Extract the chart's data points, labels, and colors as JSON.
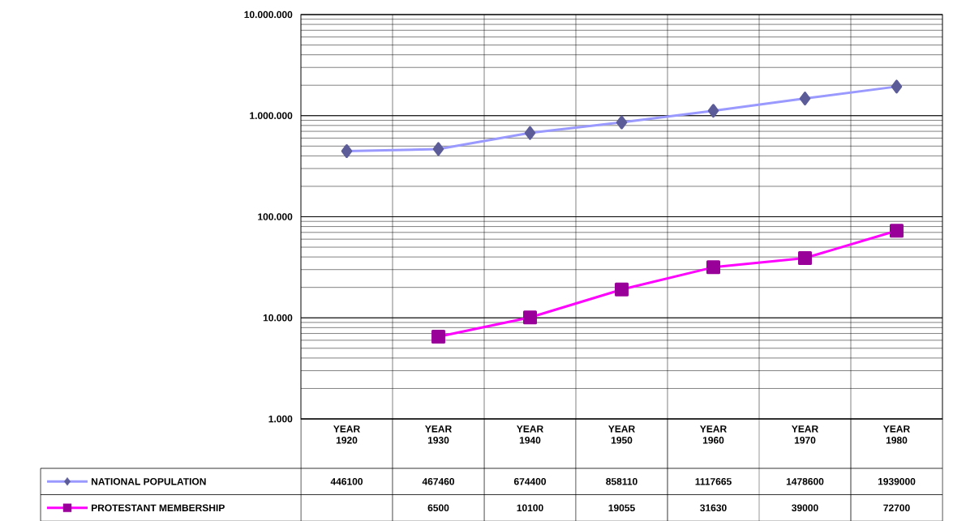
{
  "chart_data": {
    "type": "line",
    "categories": [
      "YEAR 1920",
      "YEAR 1930",
      "YEAR 1940",
      "YEAR 1950",
      "YEAR 1960",
      "YEAR 1970",
      "YEAR 1980"
    ],
    "series": [
      {
        "name": "NATIONAL POPULATION",
        "color": "#9999ff",
        "marker": "diamond",
        "values": [
          446100,
          467460,
          674400,
          858110,
          1117665,
          1478600,
          1939000
        ]
      },
      {
        "name": "PROTESTANT MEMBERSHIP",
        "color": "#ff00ff",
        "marker": "square",
        "values": [
          null,
          6500,
          10100,
          19055,
          31630,
          39000,
          72700
        ]
      }
    ],
    "log": "y",
    "ylim": [
      1000,
      10000000
    ],
    "yticks": [
      {
        "value": 1000,
        "label": "1.000"
      },
      {
        "value": 10000,
        "label": "10.000"
      },
      {
        "value": 100000,
        "label": "100.000"
      },
      {
        "value": 1000000,
        "label": "1.000.000"
      },
      {
        "value": 10000000,
        "label": "10.000.000"
      }
    ],
    "grid": true,
    "legend": "bottom",
    "data_labels": true
  }
}
